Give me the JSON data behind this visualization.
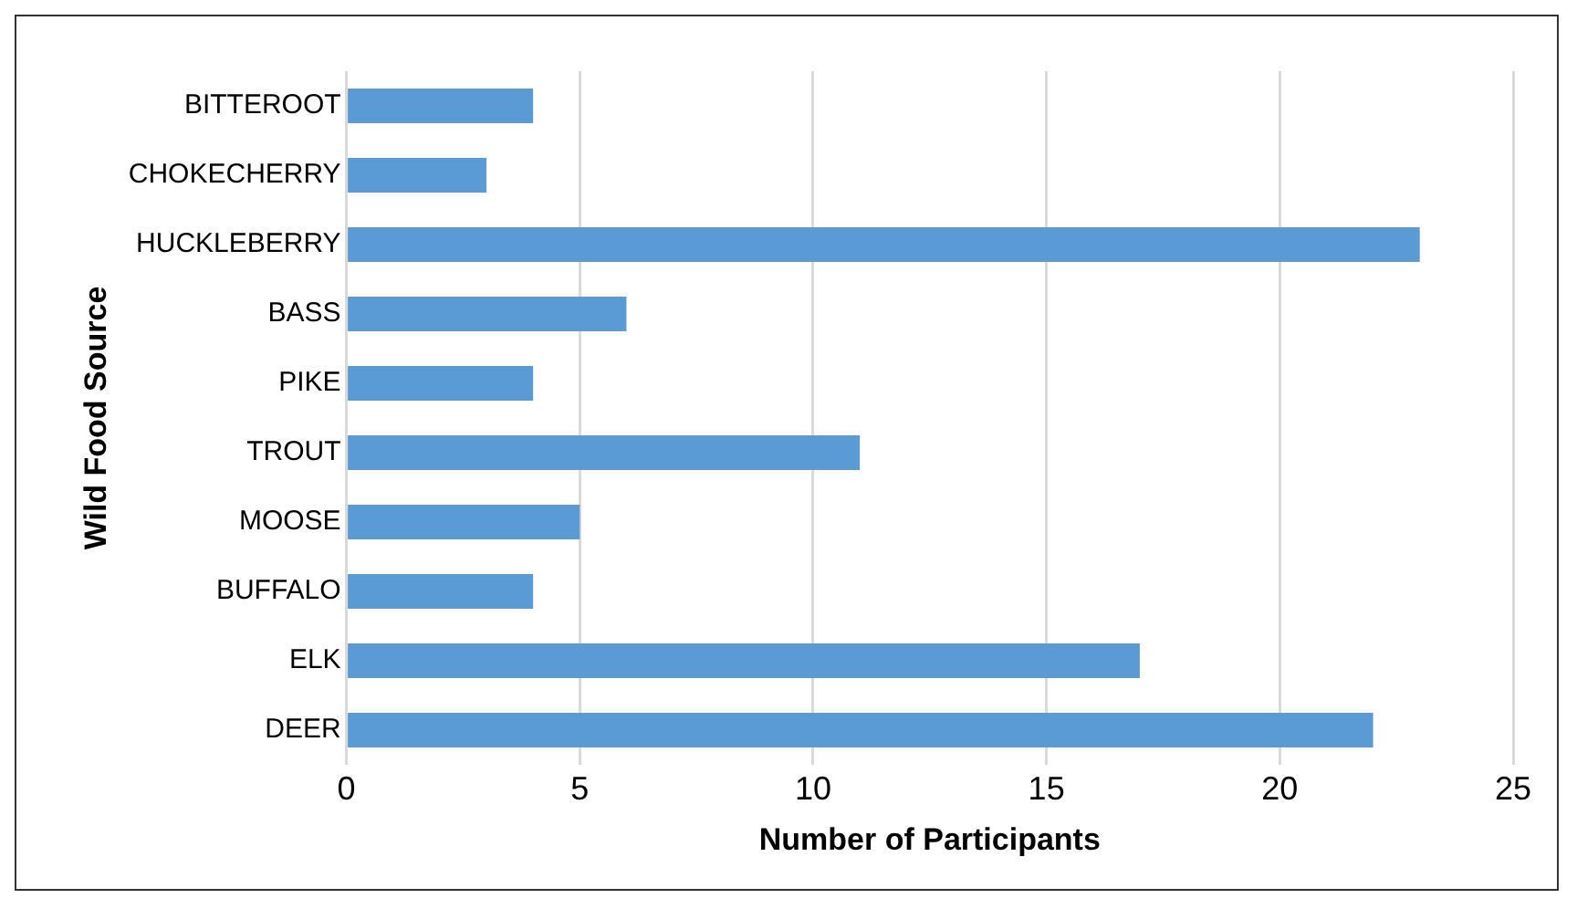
{
  "chart_data": {
    "type": "bar",
    "orientation": "horizontal",
    "xlabel": "Number of Participants",
    "ylabel": "Wild Food Source",
    "categories": [
      "BITTEROOT",
      "CHOKECHERRY",
      "HUCKLEBERRY",
      "BASS",
      "PIKE",
      "TROUT",
      "MOOSE",
      "BUFFALO",
      "ELK",
      "DEER"
    ],
    "values": [
      4,
      3,
      23,
      6,
      4,
      11,
      5,
      4,
      17,
      22
    ],
    "color": "#5b9bd5",
    "xlim": [
      0,
      25
    ],
    "xticks": [
      0,
      5,
      10,
      15,
      20,
      25
    ],
    "grid": "x",
    "legend": false
  }
}
